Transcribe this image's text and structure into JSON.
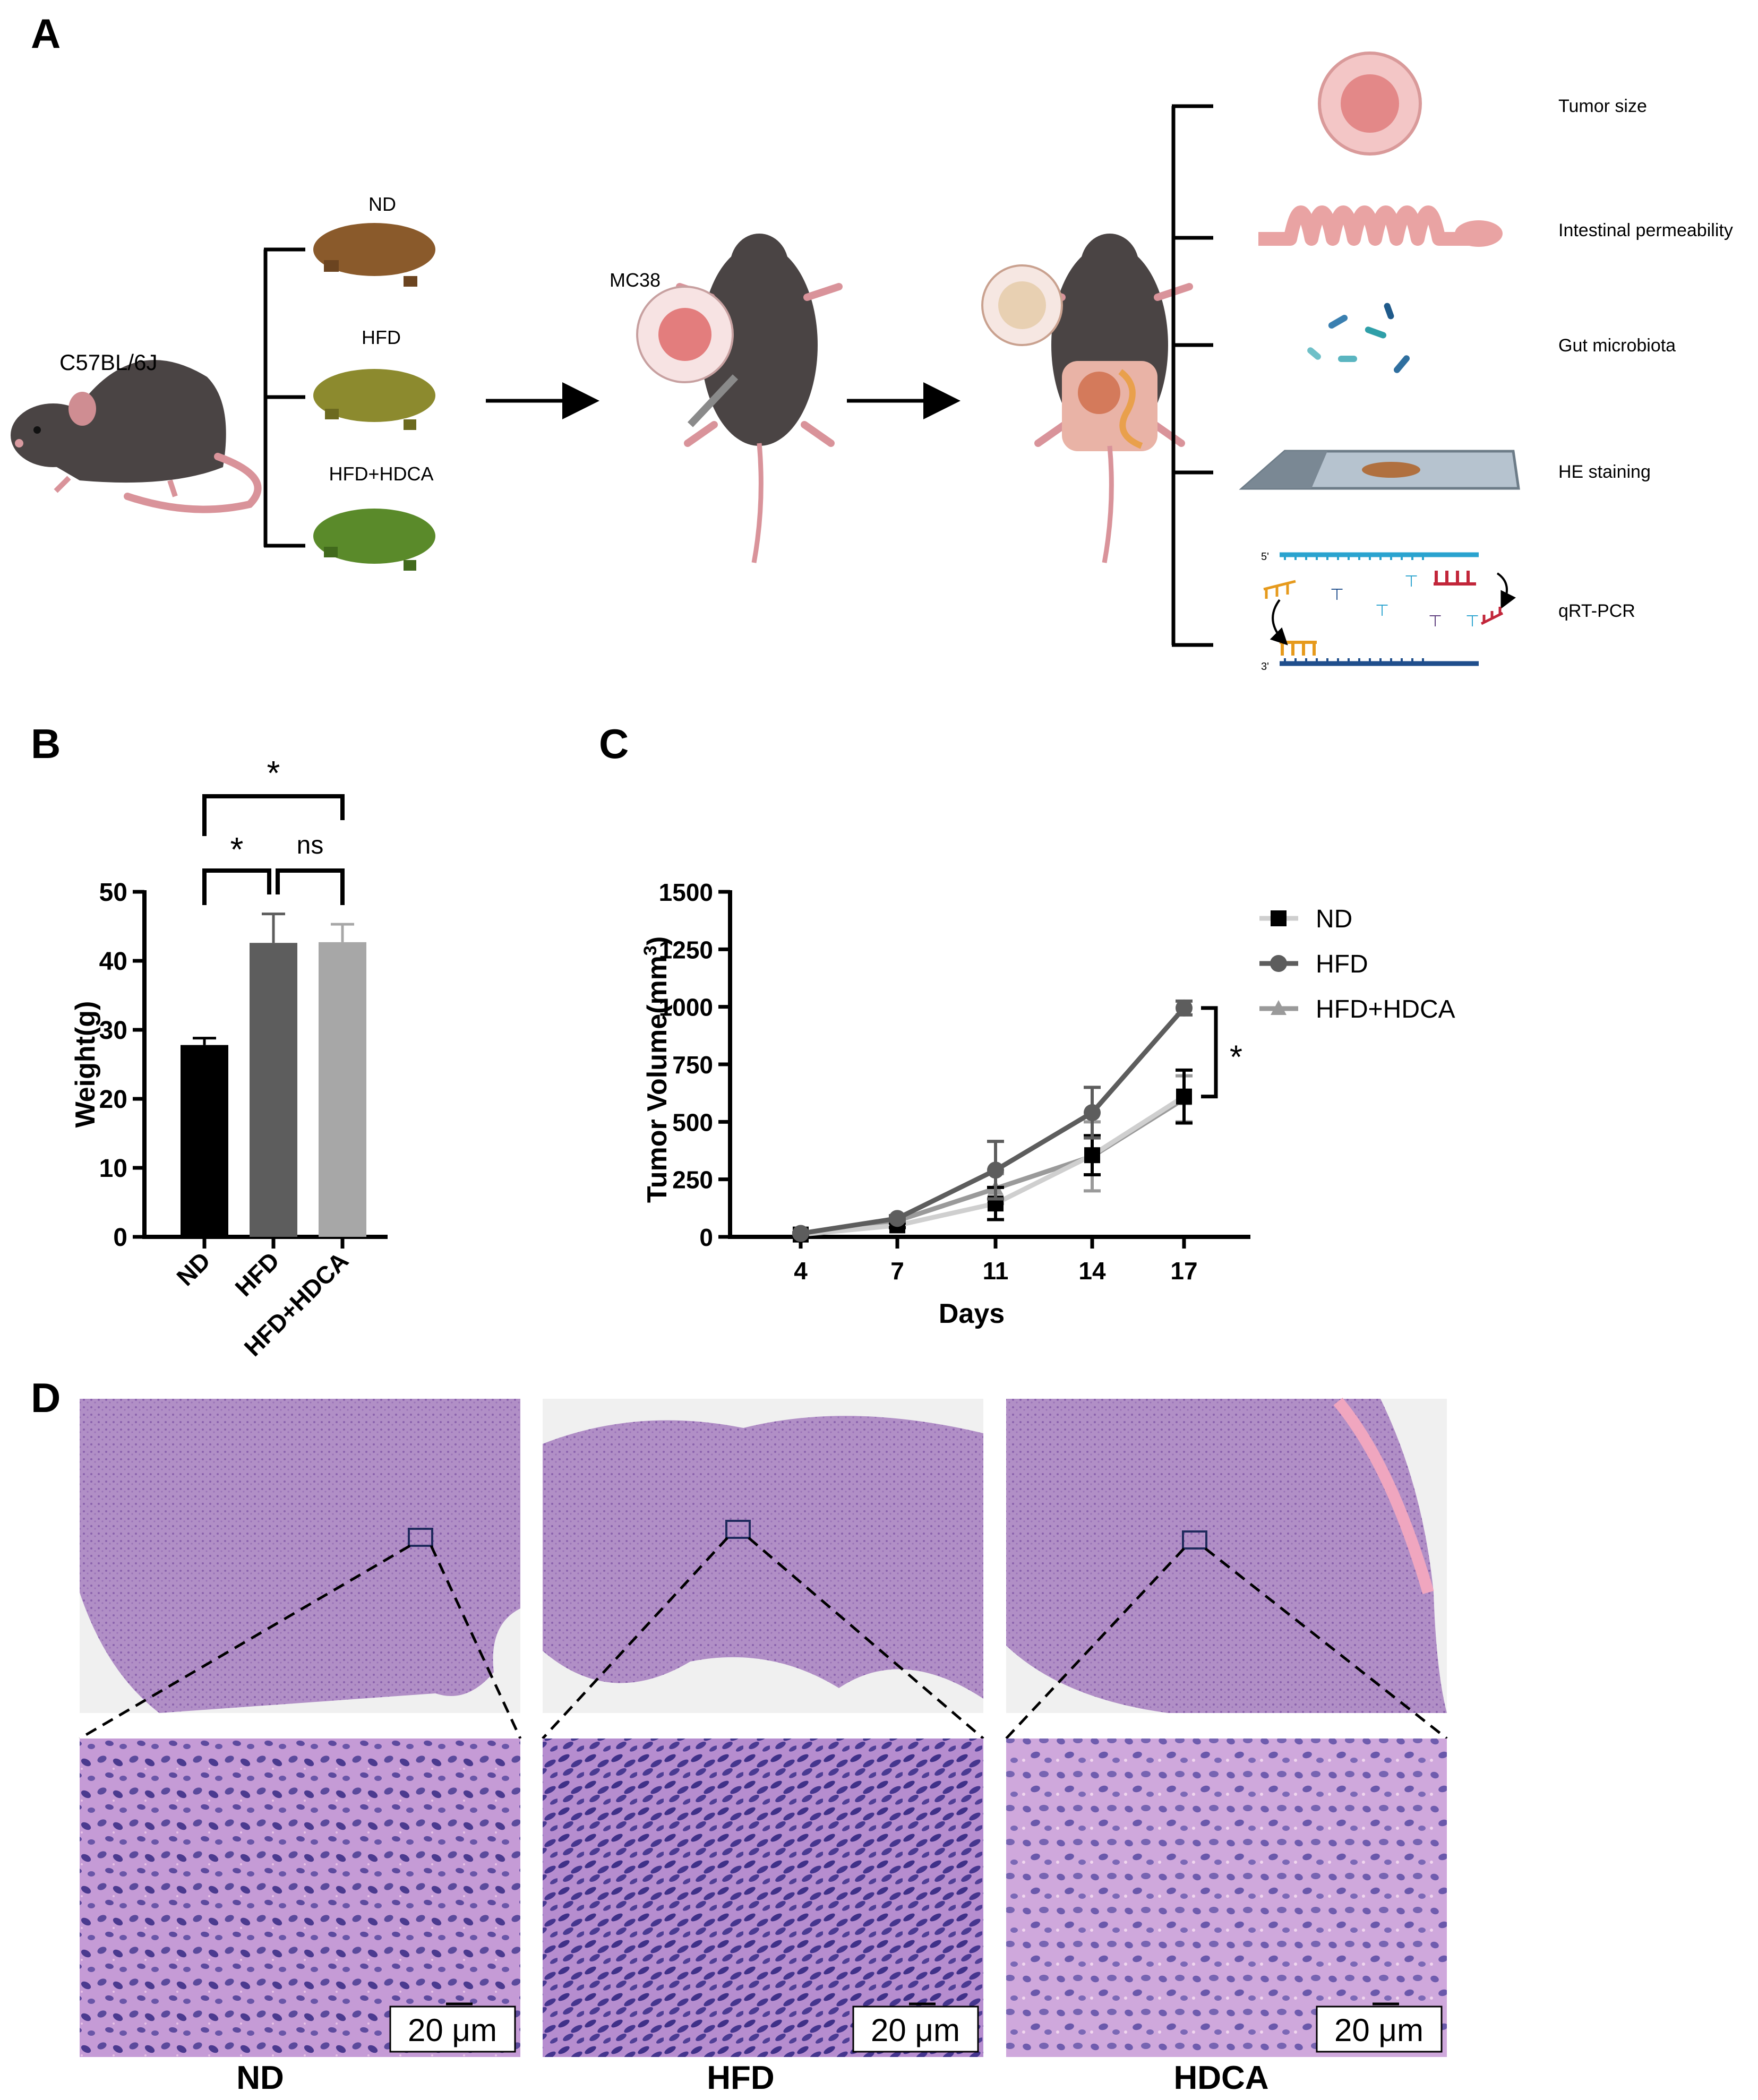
{
  "panels": {
    "a": "A",
    "b": "B",
    "c": "C",
    "d": "D"
  },
  "panel_a": {
    "strain": "C57BL/6J",
    "diets": [
      "ND",
      "HFD",
      "HFD+HDCA"
    ],
    "cell_line": "MC38",
    "outcomes": [
      "Tumor size",
      "Intestinal permeability",
      "Gut microbiota",
      "HE staining",
      "qRT-PCR"
    ],
    "dna_five_prime": "5'",
    "dna_three_prime": "3'",
    "colors": {
      "nd_pellet": "#8a5a2b",
      "hfd_pellet": "#8c8a2e",
      "hdca_pellet": "#5a8a2a",
      "mouse": "#4a4444"
    }
  },
  "panel_d": {
    "labels": [
      "ND",
      "HFD",
      "HDCA"
    ],
    "scale_bar": "20 μm",
    "colors": {
      "tissue": "#b593c9",
      "zoom": "#c49ad8",
      "nucleus": "#4b3a8f"
    }
  },
  "chart_data": [
    {
      "type": "bar",
      "categories": [
        "ND",
        "HFD",
        "HFD+HDCA"
      ],
      "values": [
        27.8,
        42.6,
        42.7
      ],
      "errors": [
        1.0,
        4.2,
        2.6
      ],
      "colors": [
        "#000000",
        "#5d5d5d",
        "#a7a7a7"
      ],
      "ylabel": "Weight(g)",
      "ylim": [
        0,
        50
      ],
      "yticks": [
        0,
        10,
        20,
        30,
        40,
        50
      ],
      "significance": [
        {
          "between": [
            "ND",
            "HFD+HDCA"
          ],
          "label": "*"
        },
        {
          "between": [
            "ND",
            "HFD"
          ],
          "label": "*"
        },
        {
          "between": [
            "HFD",
            "HFD+HDCA"
          ],
          "label": "ns"
        }
      ]
    },
    {
      "type": "line",
      "x": [
        4,
        7,
        11,
        14,
        17
      ],
      "xlabel": "Days",
      "ylabel": "Tumor Volume(mm",
      "ylabel_sup": "3",
      "ylabel_close": ")",
      "ylim": [
        0,
        1500
      ],
      "yticks": [
        0,
        250,
        500,
        750,
        1000,
        1250,
        1500
      ],
      "legend_position": "top-right",
      "series": [
        {
          "name": "ND",
          "marker": "square",
          "color": "#000000",
          "line_color": "#cfcfcf",
          "values": [
            10,
            50,
            145,
            355,
            610
          ],
          "errors": [
            3,
            10,
            70,
            85,
            115
          ]
        },
        {
          "name": "HFD",
          "marker": "circle",
          "color": "#5d5d5d",
          "line_color": "#5d5d5d",
          "values": [
            15,
            80,
            290,
            540,
            995
          ],
          "errors": [
            3,
            12,
            125,
            110,
            30
          ]
        },
        {
          "name": "HFD+HDCA",
          "marker": "triangle",
          "color": "#9a9a9a",
          "line_color": "#9a9a9a",
          "values": [
            12,
            70,
            210,
            350,
            600
          ],
          "errors": [
            3,
            12,
            65,
            150,
            100
          ]
        }
      ],
      "significance": {
        "between": [
          "HFD",
          "ND"
        ],
        "label": "*"
      }
    }
  ]
}
